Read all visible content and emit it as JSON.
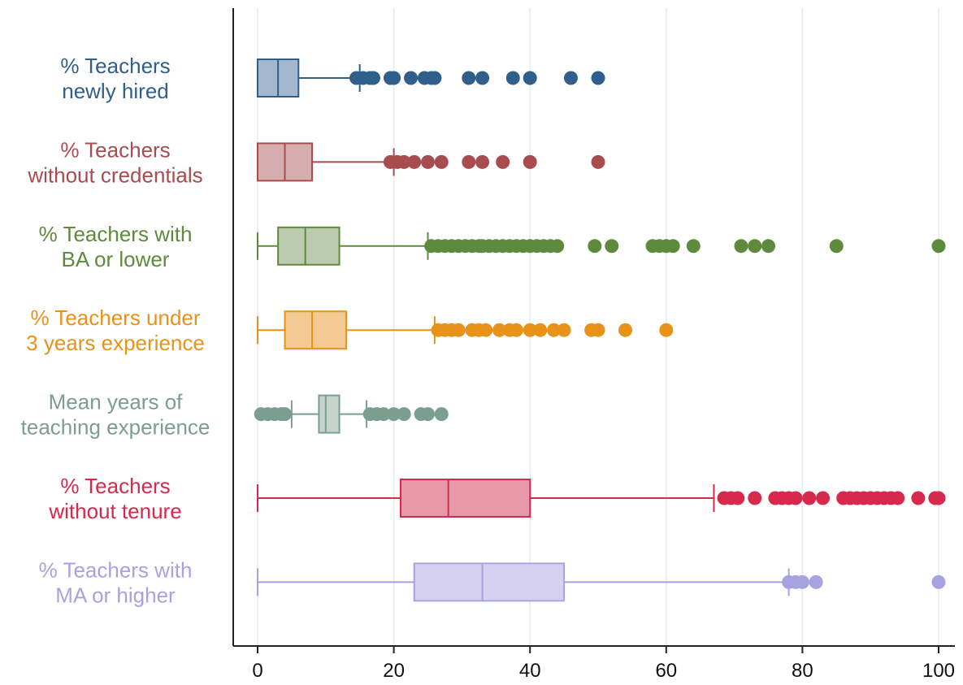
{
  "chart_data": {
    "type": "boxplot",
    "orientation": "horizontal",
    "xlim": [
      0,
      100
    ],
    "x_ticks": [
      "0",
      "20",
      "40",
      "60",
      "80",
      "100"
    ],
    "grid": "vertical",
    "series": [
      {
        "label_lines": [
          "% Teachers",
          "newly hired"
        ],
        "color": "#2f5f8a",
        "fill": "#a3b8cf",
        "min": 0,
        "q1": 0,
        "median": 3,
        "q3": 6,
        "whisker_high": 15,
        "outliers": [
          14.5,
          15.5,
          16.5,
          17,
          19.5,
          20,
          22.5,
          24.5,
          25.5,
          26,
          31,
          33,
          37.5,
          40,
          46,
          50
        ]
      },
      {
        "label_lines": [
          "% Teachers",
          "without credentials"
        ],
        "color": "#a84c50",
        "fill": "#d6adaf",
        "min": 0,
        "q1": 0,
        "median": 4,
        "q3": 8,
        "whisker_high": 20,
        "outliers": [
          19.5,
          20.5,
          21.5,
          23,
          25,
          27,
          31,
          33,
          36,
          40,
          50
        ]
      },
      {
        "label_lines": [
          "% Teachers with",
          "BA or lower"
        ],
        "color": "#5d8a3c",
        "fill": "#bccbaf",
        "min": 0,
        "q1": 3,
        "median": 7,
        "q3": 12,
        "whisker_high": 25,
        "outliers": [
          25.5,
          26.5,
          27.5,
          28.5,
          29.5,
          30.5,
          31.5,
          32.5,
          33,
          34,
          35,
          36,
          37,
          38,
          39,
          40,
          41,
          42,
          43,
          44,
          49.5,
          52,
          58,
          59,
          60,
          61,
          64,
          71,
          73,
          75,
          85,
          100
        ]
      },
      {
        "label_lines": [
          "% Teachers under",
          "3 years experience"
        ],
        "color": "#e8921a",
        "fill": "#f3c892",
        "min": 0,
        "q1": 4,
        "median": 8,
        "q3": 13,
        "whisker_high": 26,
        "outliers": [
          26.5,
          27.5,
          28.5,
          29.5,
          31.5,
          32.5,
          33.5,
          35.5,
          37,
          38,
          40,
          41.5,
          43.5,
          45,
          49,
          50,
          54,
          60
        ]
      },
      {
        "label_lines": [
          "Mean years of",
          "teaching experience"
        ],
        "color": "#7a9e8f",
        "fill": "#c5d3cd",
        "min": 5,
        "q1": 9,
        "median": 10,
        "q3": 12,
        "whisker_high": 16,
        "outliers": [
          0.5,
          1.5,
          2.5,
          3.5,
          4,
          16.5,
          17.5,
          18.5,
          20,
          21.5,
          24,
          25,
          27
        ]
      },
      {
        "label_lines": [
          "% Teachers",
          "without tenure"
        ],
        "color": "#d6294b",
        "fill": "#e898a8",
        "min": 0,
        "q1": 21,
        "median": 28,
        "q3": 40,
        "whisker_high": 67,
        "outliers": [
          68.5,
          69.5,
          70.5,
          73,
          76,
          77,
          78,
          79,
          81,
          83,
          86,
          87,
          88,
          89,
          90,
          91,
          92,
          93,
          94,
          97,
          99.5,
          100
        ]
      },
      {
        "label_lines": [
          "% Teachers with",
          "MA or higher"
        ],
        "color": "#a7a3e0",
        "fill": "#d6d1f0",
        "min": 0,
        "q1": 23,
        "median": 33,
        "q3": 45,
        "whisker_high": 78,
        "outliers": [
          78,
          79,
          80,
          82,
          100
        ]
      }
    ]
  }
}
